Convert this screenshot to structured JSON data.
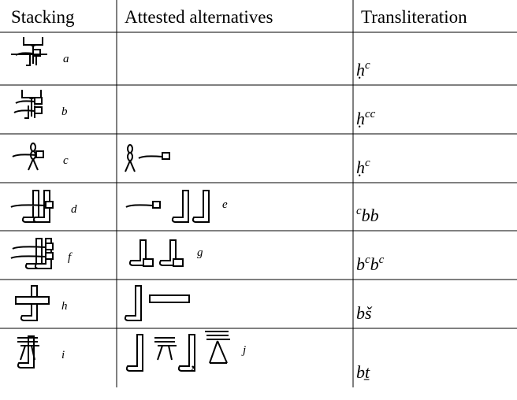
{
  "table": {
    "header": [
      "Stacking",
      "Attested alternatives",
      "Transliteration"
    ],
    "rows": [
      {
        "stacking_note": "a",
        "alternatives_note": null,
        "alternatives_sep": null,
        "transliteration": [
          {
            "text": "ḥ"
          },
          {
            "sup": "c"
          }
        ]
      },
      {
        "stacking_note": "b",
        "alternatives_note": null,
        "alternatives_sep": null,
        "transliteration": [
          {
            "text": "ḥ"
          },
          {
            "sup": "cc"
          }
        ]
      },
      {
        "stacking_note": "c",
        "alternatives_note": null,
        "alternatives_sep": null,
        "transliteration": [
          {
            "text": "ḥ"
          },
          {
            "sup": "c"
          }
        ]
      },
      {
        "stacking_note": "d",
        "alternatives_note": "e",
        "alternatives_sep": null,
        "transliteration": [
          {
            "sup": "c"
          },
          {
            "text": "bb"
          }
        ]
      },
      {
        "stacking_note": "f",
        "alternatives_note": "g",
        "alternatives_sep": null,
        "transliteration": [
          {
            "text": "b"
          },
          {
            "sup": "c"
          },
          {
            "text": "b"
          },
          {
            "sup": "c"
          }
        ]
      },
      {
        "stacking_note": "h",
        "alternatives_note": null,
        "alternatives_sep": null,
        "transliteration": [
          {
            "text": "bš"
          }
        ]
      },
      {
        "stacking_note": "i",
        "alternatives_note": "j",
        "alternatives_sep": ",",
        "transliteration": [
          {
            "text": "bṯ"
          }
        ]
      }
    ]
  }
}
